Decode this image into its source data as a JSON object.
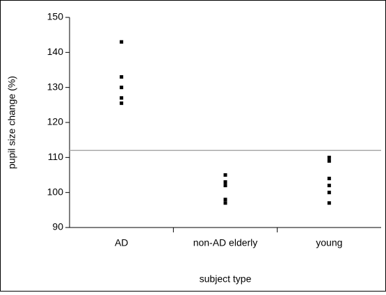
{
  "chart_data": {
    "type": "strip",
    "x_label": "subject type",
    "y_label": "pupil size change (%)",
    "categories": [
      "AD",
      "non-AD elderly",
      "young"
    ],
    "series": [
      {
        "color": "#000000",
        "values": [
          [
            143,
            133,
            130,
            127,
            125.5
          ],
          [
            105,
            103,
            102,
            98,
            97
          ],
          [
            110,
            109,
            104,
            102,
            100,
            97
          ]
        ]
      }
    ],
    "reference_line": 112,
    "reference_color": "#aaaaaa",
    "ylim": [
      90,
      150
    ],
    "yticks": [
      90,
      100,
      110,
      120,
      130,
      140,
      150
    ]
  }
}
